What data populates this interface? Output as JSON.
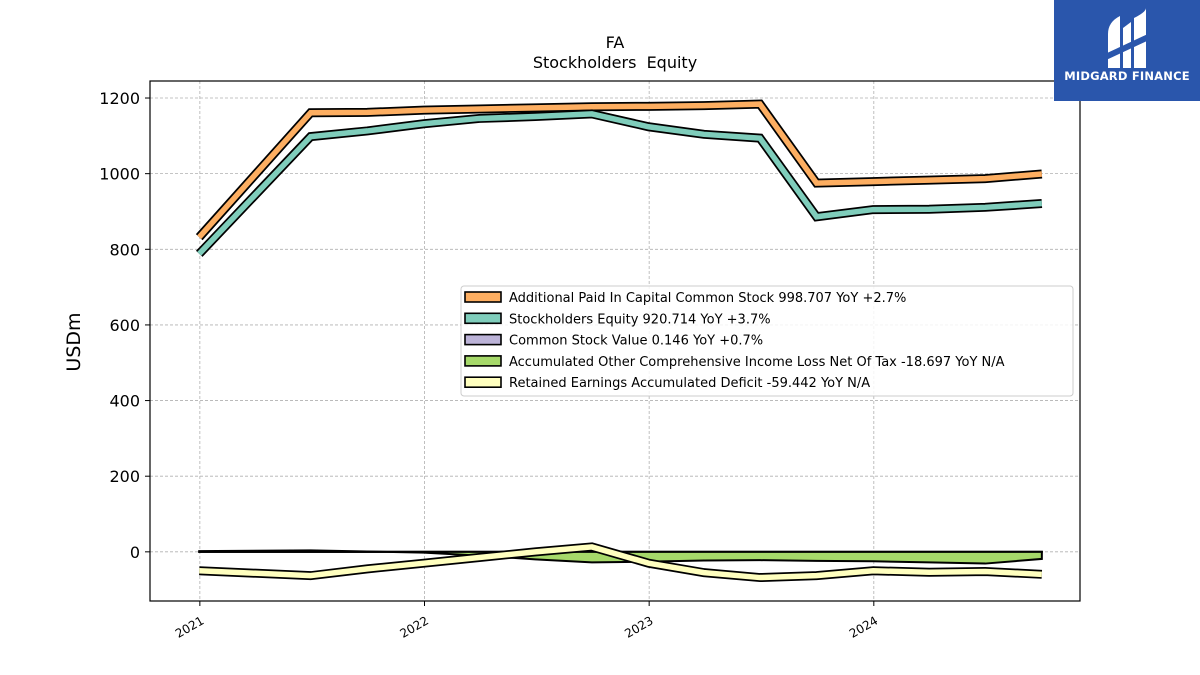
{
  "chart_data": {
    "type": "line",
    "title": "FA",
    "subtitle": "Stockholders  Equity",
    "xlabel": "",
    "ylabel": "USDm",
    "xlim": [
      "2020-10-12",
      "2024-12-01"
    ],
    "ylim": [
      -130,
      1245
    ],
    "yticks": [
      0,
      200,
      400,
      600,
      800,
      1000,
      1200
    ],
    "xticks": [
      "2021",
      "2022",
      "2023",
      "2024"
    ],
    "grid": true,
    "legend_position": "center-right",
    "dates": [
      "2020-12-31",
      "2021-06-30",
      "2021-09-30",
      "2021-12-31",
      "2022-03-31",
      "2022-06-30",
      "2022-09-30",
      "2022-12-31",
      "2023-03-31",
      "2023-06-30",
      "2023-09-30",
      "2023-12-31",
      "2024-03-31",
      "2024-06-30",
      "2024-09-30"
    ],
    "series": [
      {
        "name": "Additional Paid In Capital Common Stock",
        "legend": "Additional Paid In Capital Common Stock  998.707 YoY +2.7%",
        "color": "#fdae61",
        "kind": "line",
        "values": [
          832,
          1161,
          1162,
          1168,
          1171,
          1174,
          1177,
          1178,
          1180,
          1184,
          975,
          979,
          983,
          987,
          999
        ]
      },
      {
        "name": "Stockholders Equity",
        "legend": "Stockholders Equity  920.714 YoY +3.7%",
        "color": "#7fcdbb",
        "kind": "line",
        "values": [
          788,
          1098,
          1113,
          1132,
          1146,
          1151,
          1158,
          1124,
          1104,
          1094,
          886,
          905,
          906,
          911,
          921
        ]
      },
      {
        "name": "Common Stock Value",
        "legend": "Common Stock Value  0.146 YoY +0.7%",
        "color": "#bcb3d8",
        "kind": "area",
        "values": [
          0.14,
          0.14,
          0.14,
          0.14,
          0.145,
          0.145,
          0.145,
          0.145,
          0.145,
          0.145,
          0.145,
          0.145,
          0.146,
          0.146,
          0.146
        ]
      },
      {
        "name": "Accumulated Other Comprehensive Income Loss Net Of Tax",
        "legend": "Accumulated Other Comprehensive Income Loss Net Of Tax  -18.697 YoY N/A",
        "color": "#a6d96a",
        "kind": "area",
        "values": [
          2,
          4,
          1,
          -2,
          -10,
          -20,
          -28,
          -26,
          -23,
          -22,
          -24,
          -25,
          -28,
          -31,
          -18.697
        ]
      },
      {
        "name": "Retained Earnings Accumulated Deficit",
        "legend": "Retained Earnings Accumulated Deficit  -59.442 YoY N/A",
        "color": "#ffffbf",
        "kind": "line",
        "values": [
          -50,
          -63,
          -45,
          -30,
          -15,
          0,
          13,
          -30,
          -55,
          -68,
          -63,
          -50,
          -54,
          -52,
          -59.442
        ]
      }
    ]
  },
  "logo": {
    "text": "MIDGARD FINANCE",
    "icon": "midgard-finance-logo-icon",
    "color": "#2a56ac"
  }
}
